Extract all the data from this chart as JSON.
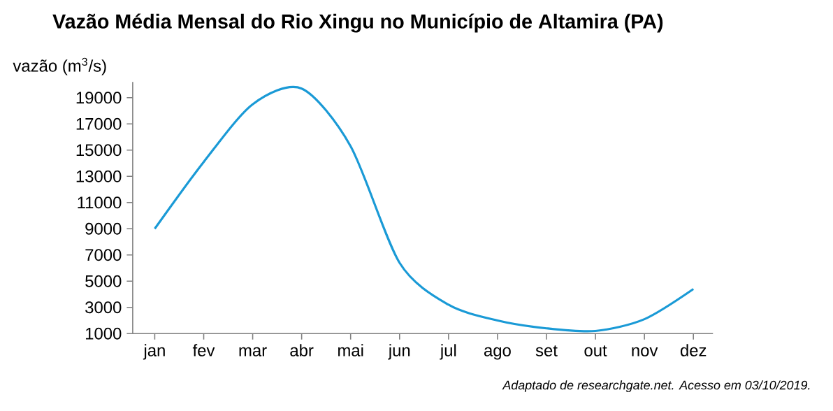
{
  "chart_data": {
    "type": "line",
    "title": "Vazão Média Mensal do Rio Xingu no Município de Altamira (PA)",
    "ylabel": "vazão (m$^{3}$/s)",
    "annotations": [
      "Adaptado de researchgate.net. Acesso em 03/10/2019."
    ],
    "categories": [
      "jan",
      "fev",
      "mar",
      "abr",
      "mai",
      "jun",
      "jul",
      "ago",
      "set",
      "out",
      "nov",
      "dez"
    ],
    "series": [
      {
        "color": "#1a9ad6",
        "values": [
          9000,
          14100,
          18500,
          19700,
          15300,
          6400,
          3200,
          2000,
          1400,
          1200,
          2100,
          4400
        ]
      }
    ],
    "ylim": [
      1000,
      20200
    ],
    "yticks": [
      1000,
      3000,
      5000,
      7000,
      9000,
      11000,
      13000,
      15000,
      17000,
      19000
    ],
    "grid": false,
    "legend": false,
    "marker": "none",
    "line_style": "solid"
  }
}
